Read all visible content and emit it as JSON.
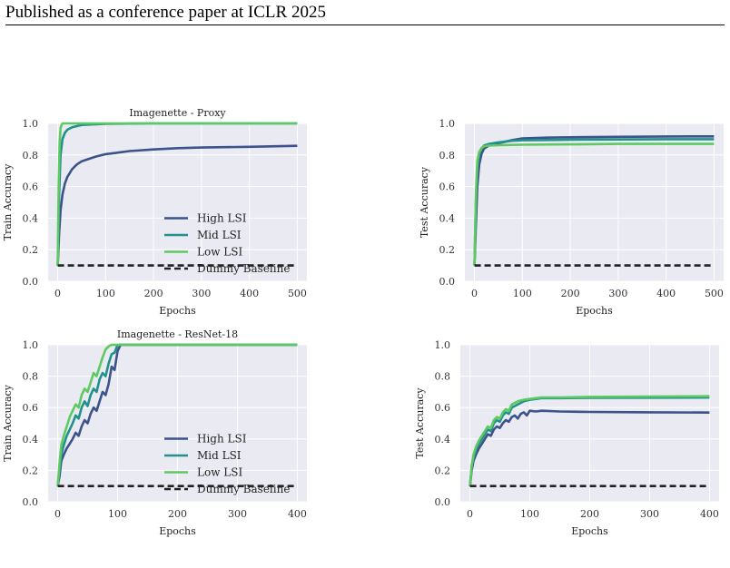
{
  "page": {
    "header": "Published as a conference paper at ICLR 2025"
  },
  "colors": {
    "high": "#3b528b",
    "mid": "#21918c",
    "low": "#5ec962",
    "dummy": "#222222"
  },
  "chart_data": [
    {
      "id": "p1",
      "type": "line",
      "title": "Imagenette - Proxy",
      "xlabel": "Epochs",
      "ylabel": "Train Accuracy",
      "xlim": [
        -20,
        520
      ],
      "ylim": [
        0,
        1
      ],
      "xticks": [
        0,
        100,
        200,
        300,
        400,
        500
      ],
      "yticks": [
        0.0,
        0.2,
        0.4,
        0.6,
        0.8,
        1.0
      ],
      "grid": true,
      "legend": "lower-right",
      "series": [
        {
          "name": "High LSI",
          "key": "high",
          "x": [
            0,
            3,
            6,
            10,
            15,
            20,
            30,
            40,
            50,
            60,
            80,
            100,
            150,
            200,
            250,
            300,
            400,
            500
          ],
          "y": [
            0.1,
            0.3,
            0.45,
            0.55,
            0.62,
            0.66,
            0.71,
            0.74,
            0.76,
            0.77,
            0.79,
            0.805,
            0.825,
            0.835,
            0.843,
            0.847,
            0.852,
            0.858
          ]
        },
        {
          "name": "Mid LSI",
          "key": "mid",
          "x": [
            0,
            3,
            6,
            10,
            15,
            20,
            30,
            50,
            80,
            100,
            150,
            200,
            300,
            400,
            500
          ],
          "y": [
            0.1,
            0.55,
            0.8,
            0.9,
            0.94,
            0.96,
            0.975,
            0.99,
            0.995,
            0.997,
            0.999,
            1.0,
            1.0,
            1.0,
            1.0
          ]
        },
        {
          "name": "Low LSI",
          "key": "low",
          "x": [
            0,
            2,
            4,
            6,
            8,
            10,
            20,
            50,
            100,
            200,
            300,
            400,
            500
          ],
          "y": [
            0.1,
            0.6,
            0.88,
            0.97,
            0.99,
            1.0,
            1.0,
            1.0,
            1.0,
            1.0,
            1.0,
            1.0,
            1.0
          ]
        },
        {
          "name": "Dummy Baseline",
          "key": "dummy",
          "dashed": true,
          "x": [
            0,
            500
          ],
          "y": [
            0.1,
            0.1
          ]
        }
      ]
    },
    {
      "id": "p2",
      "type": "line",
      "title": "",
      "xlabel": "Epochs",
      "ylabel": "Test Accuracy",
      "xlim": [
        -20,
        520
      ],
      "ylim": [
        0,
        1
      ],
      "xticks": [
        0,
        100,
        200,
        300,
        400,
        500
      ],
      "yticks": [
        0.0,
        0.2,
        0.4,
        0.6,
        0.8,
        1.0
      ],
      "grid": true,
      "series": [
        {
          "key": "high",
          "x": [
            0,
            3,
            6,
            10,
            15,
            20,
            30,
            50,
            80,
            100,
            150,
            200,
            300,
            400,
            500
          ],
          "y": [
            0.1,
            0.35,
            0.6,
            0.74,
            0.81,
            0.84,
            0.86,
            0.875,
            0.895,
            0.905,
            0.91,
            0.912,
            0.915,
            0.917,
            0.918
          ]
        },
        {
          "key": "mid",
          "x": [
            0,
            3,
            6,
            10,
            15,
            20,
            30,
            50,
            80,
            100,
            150,
            200,
            300,
            400,
            500
          ],
          "y": [
            0.1,
            0.5,
            0.72,
            0.8,
            0.84,
            0.86,
            0.87,
            0.88,
            0.89,
            0.893,
            0.895,
            0.897,
            0.898,
            0.9,
            0.9
          ]
        },
        {
          "key": "low",
          "x": [
            0,
            3,
            6,
            10,
            15,
            20,
            30,
            50,
            100,
            200,
            300,
            400,
            500
          ],
          "y": [
            0.1,
            0.55,
            0.76,
            0.82,
            0.845,
            0.855,
            0.86,
            0.862,
            0.865,
            0.867,
            0.87,
            0.87,
            0.87
          ]
        },
        {
          "key": "dummy",
          "dashed": true,
          "x": [
            0,
            500
          ],
          "y": [
            0.1,
            0.1
          ]
        }
      ]
    },
    {
      "id": "p3",
      "type": "line",
      "title": "Imagenette - ResNet-18",
      "xlabel": "Epochs",
      "ylabel": "Train Accuracy",
      "xlim": [
        -16,
        416
      ],
      "ylim": [
        0,
        1
      ],
      "xticks": [
        0,
        100,
        200,
        300,
        400
      ],
      "yticks": [
        0.0,
        0.2,
        0.4,
        0.6,
        0.8,
        1.0
      ],
      "grid": true,
      "legend": "lower-right",
      "series": [
        {
          "name": "High LSI",
          "key": "high",
          "x": [
            0,
            3,
            6,
            10,
            15,
            20,
            25,
            30,
            35,
            40,
            45,
            50,
            55,
            60,
            65,
            70,
            75,
            80,
            85,
            90,
            95,
            100,
            105,
            110,
            150,
            200,
            300,
            400
          ],
          "y": [
            0.1,
            0.16,
            0.26,
            0.3,
            0.34,
            0.37,
            0.4,
            0.44,
            0.42,
            0.48,
            0.52,
            0.5,
            0.56,
            0.6,
            0.58,
            0.64,
            0.7,
            0.68,
            0.75,
            0.86,
            0.84,
            0.96,
            1.0,
            1.0,
            1.0,
            1.0,
            1.0,
            1.0
          ]
        },
        {
          "name": "Mid LSI",
          "key": "mid",
          "x": [
            0,
            3,
            6,
            10,
            15,
            20,
            25,
            30,
            35,
            40,
            45,
            50,
            55,
            60,
            65,
            70,
            75,
            80,
            85,
            90,
            95,
            100,
            150,
            200,
            300,
            400
          ],
          "y": [
            0.1,
            0.2,
            0.3,
            0.36,
            0.42,
            0.46,
            0.5,
            0.55,
            0.53,
            0.6,
            0.64,
            0.61,
            0.68,
            0.72,
            0.7,
            0.78,
            0.82,
            0.8,
            0.88,
            0.94,
            0.95,
            1.0,
            1.0,
            1.0,
            1.0,
            1.0
          ]
        },
        {
          "name": "Low LSI",
          "key": "low",
          "x": [
            0,
            3,
            6,
            10,
            15,
            20,
            25,
            30,
            35,
            40,
            45,
            50,
            55,
            60,
            65,
            70,
            75,
            80,
            85,
            90,
            100,
            150,
            200,
            300,
            400
          ],
          "y": [
            0.1,
            0.24,
            0.36,
            0.42,
            0.48,
            0.54,
            0.58,
            0.62,
            0.6,
            0.68,
            0.72,
            0.7,
            0.76,
            0.82,
            0.8,
            0.86,
            0.92,
            0.97,
            0.99,
            1.0,
            1.0,
            1.0,
            1.0,
            1.0,
            1.0
          ]
        },
        {
          "name": "Dummy Baseline",
          "key": "dummy",
          "dashed": true,
          "x": [
            0,
            400
          ],
          "y": [
            0.1,
            0.1
          ]
        }
      ]
    },
    {
      "id": "p4",
      "type": "line",
      "title": "",
      "xlabel": "Epochs",
      "ylabel": "Test Accuracy",
      "xlim": [
        -16,
        416
      ],
      "ylim": [
        0,
        1
      ],
      "xticks": [
        0,
        100,
        200,
        300,
        400
      ],
      "yticks": [
        0.0,
        0.2,
        0.4,
        0.6,
        0.8,
        1.0
      ],
      "grid": true,
      "series": [
        {
          "key": "high",
          "x": [
            0,
            3,
            6,
            10,
            15,
            20,
            25,
            30,
            35,
            40,
            45,
            50,
            55,
            60,
            65,
            70,
            75,
            80,
            85,
            90,
            95,
            100,
            110,
            120,
            150,
            200,
            300,
            400
          ],
          "y": [
            0.1,
            0.2,
            0.26,
            0.3,
            0.34,
            0.37,
            0.4,
            0.43,
            0.42,
            0.46,
            0.48,
            0.47,
            0.5,
            0.52,
            0.51,
            0.54,
            0.55,
            0.53,
            0.56,
            0.57,
            0.55,
            0.58,
            0.575,
            0.58,
            0.575,
            0.572,
            0.57,
            0.568
          ]
        },
        {
          "key": "mid",
          "x": [
            0,
            3,
            6,
            10,
            15,
            20,
            25,
            30,
            35,
            40,
            45,
            50,
            55,
            60,
            65,
            70,
            75,
            80,
            85,
            90,
            100,
            110,
            120,
            150,
            200,
            300,
            400
          ],
          "y": [
            0.1,
            0.22,
            0.28,
            0.33,
            0.37,
            0.4,
            0.43,
            0.46,
            0.45,
            0.5,
            0.52,
            0.51,
            0.55,
            0.57,
            0.56,
            0.6,
            0.61,
            0.62,
            0.63,
            0.64,
            0.65,
            0.655,
            0.66,
            0.66,
            0.662,
            0.663,
            0.664
          ]
        },
        {
          "key": "low",
          "x": [
            0,
            3,
            6,
            10,
            15,
            20,
            25,
            30,
            35,
            40,
            45,
            50,
            55,
            60,
            65,
            70,
            75,
            80,
            85,
            90,
            100,
            110,
            120,
            150,
            200,
            300,
            400
          ],
          "y": [
            0.1,
            0.23,
            0.3,
            0.35,
            0.39,
            0.42,
            0.45,
            0.48,
            0.47,
            0.52,
            0.54,
            0.53,
            0.57,
            0.59,
            0.58,
            0.62,
            0.63,
            0.64,
            0.645,
            0.65,
            0.655,
            0.66,
            0.665,
            0.665,
            0.668,
            0.67,
            0.672
          ]
        },
        {
          "key": "dummy",
          "dashed": true,
          "x": [
            0,
            400
          ],
          "y": [
            0.1,
            0.1
          ]
        }
      ]
    }
  ]
}
